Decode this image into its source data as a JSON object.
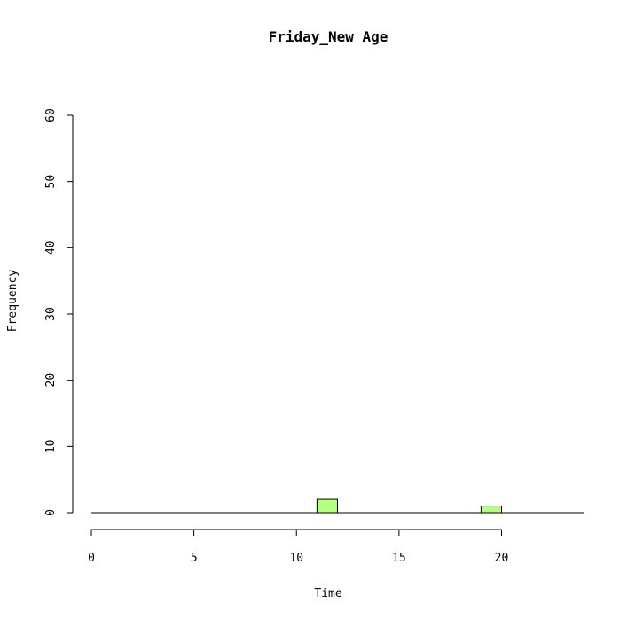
{
  "chart_data": {
    "type": "bar",
    "title": "Friday_New Age",
    "xlabel": "Time",
    "ylabel": "Frequency",
    "xlim": [
      0,
      24
    ],
    "ylim": [
      0,
      60
    ],
    "x_ticks": [
      0,
      5,
      10,
      15,
      20
    ],
    "y_ticks": [
      0,
      10,
      20,
      30,
      40,
      50,
      60
    ],
    "bins": [
      {
        "start": 11,
        "end": 12,
        "value": 2
      },
      {
        "start": 19,
        "end": 20,
        "value": 1
      }
    ],
    "bar_color": "#b3ff80"
  }
}
